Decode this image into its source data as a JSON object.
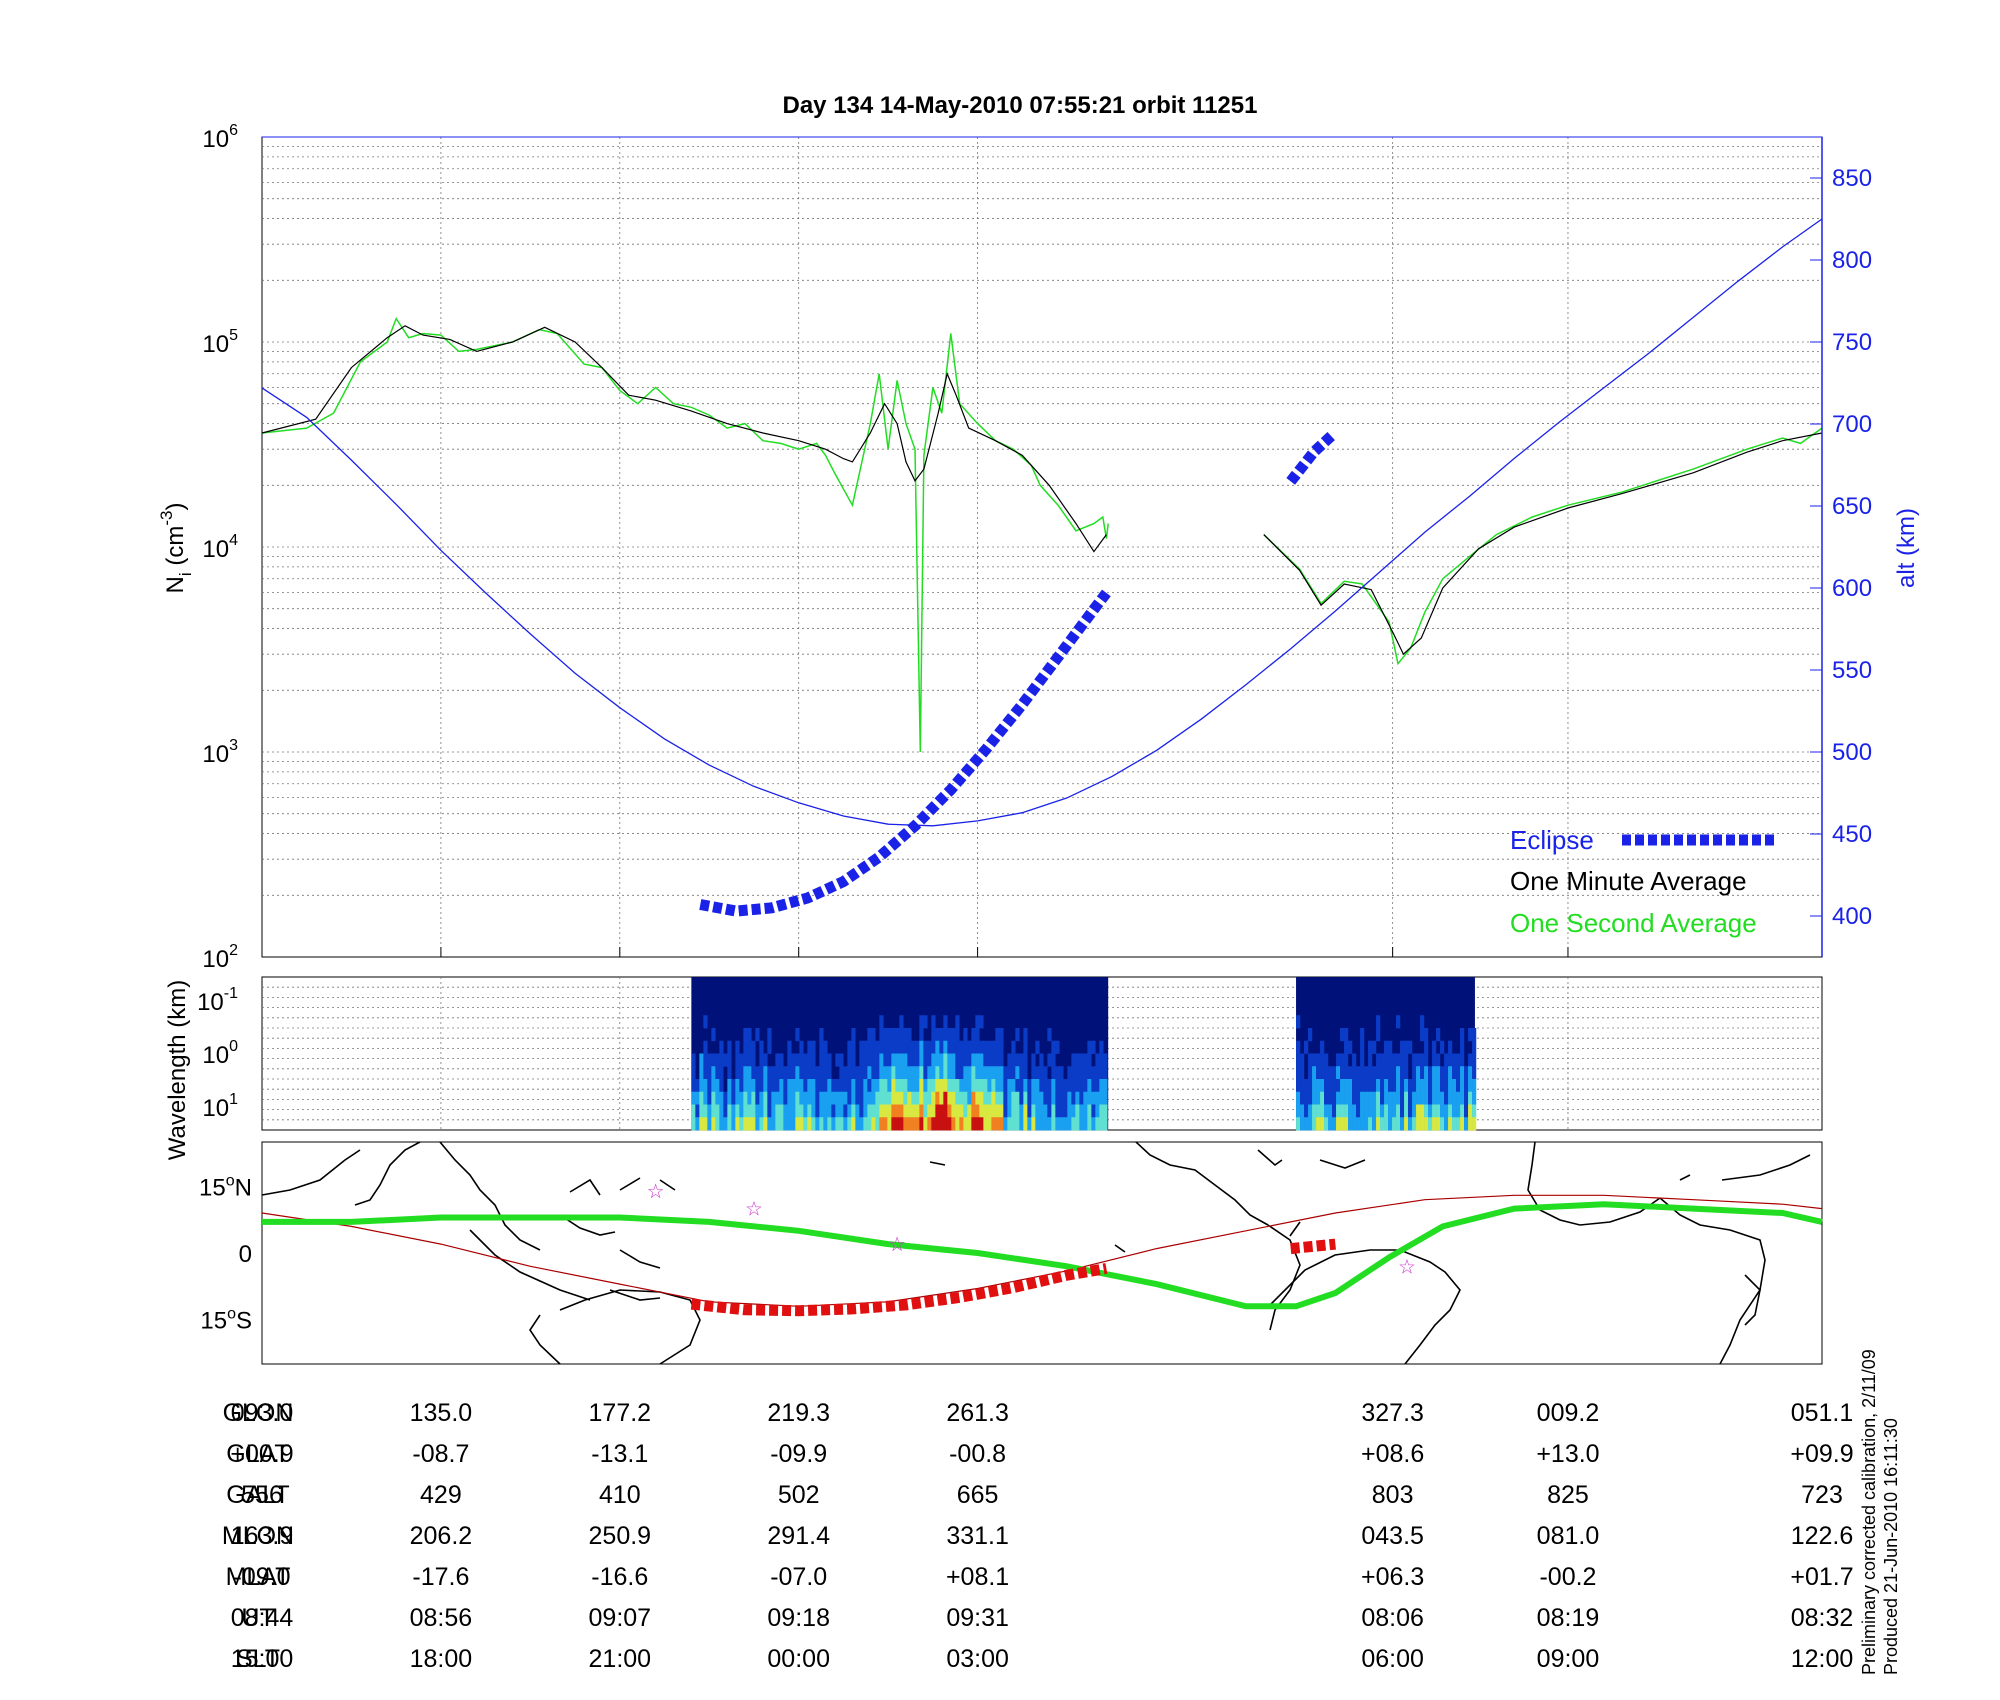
{
  "title": "Day 134  14-May-2010 07:55:21   orbit 11251",
  "chart_data": [
    {
      "type": "line",
      "panel": "ion density and altitude",
      "ylabel": "N_i (cm^-3)",
      "ylabel_parts": {
        "base": "N",
        "sub": "i",
        "unit": "(cm",
        "exp": "-3",
        "close": ")"
      },
      "yscale": "log",
      "ylim": [
        100,
        1000000
      ],
      "y_ticks": [
        {
          "base": "10",
          "exp": "2"
        },
        {
          "base": "10",
          "exp": "3"
        },
        {
          "base": "10",
          "exp": "4"
        },
        {
          "base": "10",
          "exp": "5"
        },
        {
          "base": "10",
          "exp": "6"
        }
      ],
      "y2label": "alt (km)",
      "y2lim": [
        375,
        875
      ],
      "y2_ticks": [
        "400",
        "450",
        "500",
        "550",
        "600",
        "650",
        "700",
        "750",
        "800",
        "850"
      ],
      "x_tick_columns": 9,
      "grid": true,
      "legend": {
        "placement": "lower-right",
        "items": [
          {
            "label": "Eclipse",
            "color": "#1a22e8"
          },
          {
            "label": "One Minute Average",
            "color": "#000000"
          },
          {
            "label": "One Second Average",
            "color": "#22dd22"
          }
        ]
      },
      "series": [
        {
          "name": "One Second Average",
          "color": "#22dd22",
          "segments": [
            [
              [
                0,
                36000
              ],
              [
                0.25,
                38000
              ],
              [
                0.4,
                45000
              ],
              [
                0.55,
                80000
              ],
              [
                0.7,
                100000
              ],
              [
                0.75,
                130000
              ],
              [
                0.82,
                105000
              ],
              [
                0.9,
                110000
              ],
              [
                1.0,
                108000
              ],
              [
                1.1,
                90000
              ],
              [
                1.2,
                92000
              ],
              [
                1.4,
                100000
              ],
              [
                1.55,
                115000
              ],
              [
                1.65,
                110000
              ],
              [
                1.8,
                78000
              ],
              [
                1.9,
                75000
              ],
              [
                2.0,
                58000
              ],
              [
                2.1,
                50000
              ],
              [
                2.2,
                60000
              ],
              [
                2.3,
                50000
              ],
              [
                2.4,
                48000
              ],
              [
                2.5,
                44000
              ],
              [
                2.6,
                38000
              ],
              [
                2.7,
                40000
              ],
              [
                2.8,
                33000
              ],
              [
                2.9,
                32000
              ],
              [
                3.0,
                30000
              ],
              [
                3.1,
                32000
              ],
              [
                3.15,
                28000
              ],
              [
                3.2,
                23000
              ],
              [
                3.3,
                16000
              ],
              [
                3.4,
                40000
              ],
              [
                3.45,
                70000
              ],
              [
                3.5,
                30000
              ],
              [
                3.55,
                65000
              ],
              [
                3.6,
                40000
              ],
              [
                3.65,
                30000
              ],
              [
                3.68,
                1000
              ],
              [
                3.7,
                28000
              ],
              [
                3.75,
                60000
              ],
              [
                3.8,
                45000
              ],
              [
                3.85,
                110000
              ],
              [
                3.9,
                50000
              ],
              [
                4.0,
                40000
              ],
              [
                4.1,
                33000
              ],
              [
                4.2,
                30000
              ],
              [
                4.3,
                25000
              ],
              [
                4.35,
                20000
              ],
              [
                4.45,
                16000
              ],
              [
                4.55,
                12000
              ],
              [
                4.65,
                13000
              ],
              [
                4.7,
                14000
              ],
              [
                4.72,
                11000
              ],
              [
                4.73,
                13000
              ]
            ],
            [
              [
                5.6,
                11500
              ],
              [
                5.8,
                7800
              ],
              [
                5.92,
                5300
              ],
              [
                6.05,
                6800
              ],
              [
                6.15,
                6600
              ],
              [
                6.3,
                4300
              ],
              [
                6.35,
                2700
              ],
              [
                6.42,
                3200
              ],
              [
                6.5,
                4800
              ],
              [
                6.6,
                7000
              ],
              [
                6.75,
                9000
              ],
              [
                6.9,
                11500
              ],
              [
                7.1,
                14000
              ],
              [
                7.3,
                16000
              ],
              [
                7.6,
                18500
              ],
              [
                8.0,
                24000
              ],
              [
                8.3,
                30000
              ],
              [
                8.5,
                34000
              ],
              [
                8.6,
                32000
              ],
              [
                8.72,
                38000
              ]
            ]
          ]
        },
        {
          "name": "One Minute Average",
          "color": "#000000",
          "segments": [
            [
              [
                0,
                36000
              ],
              [
                0.3,
                42000
              ],
              [
                0.5,
                75000
              ],
              [
                0.7,
                105000
              ],
              [
                0.8,
                120000
              ],
              [
                0.9,
                108000
              ],
              [
                1.05,
                103000
              ],
              [
                1.2,
                90000
              ],
              [
                1.4,
                100000
              ],
              [
                1.58,
                118000
              ],
              [
                1.75,
                100000
              ],
              [
                1.9,
                75000
              ],
              [
                2.05,
                55000
              ],
              [
                2.2,
                52000
              ],
              [
                2.4,
                46000
              ],
              [
                2.6,
                40000
              ],
              [
                2.8,
                36000
              ],
              [
                3.0,
                33000
              ],
              [
                3.15,
                30000
              ],
              [
                3.25,
                27000
              ],
              [
                3.3,
                26000
              ],
              [
                3.4,
                36000
              ],
              [
                3.48,
                50000
              ],
              [
                3.55,
                40000
              ],
              [
                3.6,
                26000
              ],
              [
                3.65,
                21000
              ],
              [
                3.7,
                24000
              ],
              [
                3.78,
                45000
              ],
              [
                3.83,
                70000
              ],
              [
                3.88,
                55000
              ],
              [
                3.95,
                38000
              ],
              [
                4.1,
                33000
              ],
              [
                4.25,
                28000
              ],
              [
                4.4,
                20000
              ],
              [
                4.55,
                13000
              ],
              [
                4.65,
                9500
              ],
              [
                4.72,
                11500
              ]
            ],
            [
              [
                5.6,
                11500
              ],
              [
                5.8,
                7700
              ],
              [
                5.92,
                5200
              ],
              [
                6.05,
                6600
              ],
              [
                6.2,
                6200
              ],
              [
                6.33,
                3700
              ],
              [
                6.38,
                3000
              ],
              [
                6.48,
                3600
              ],
              [
                6.6,
                6300
              ],
              [
                6.8,
                9800
              ],
              [
                7.0,
                12500
              ],
              [
                7.3,
                15500
              ],
              [
                7.6,
                18200
              ],
              [
                8.0,
                23000
              ],
              [
                8.3,
                29000
              ],
              [
                8.5,
                33000
              ],
              [
                8.72,
                36000
              ]
            ]
          ]
        },
        {
          "name": "alt (km)",
          "axis": "right",
          "color": "#1a22e8",
          "x": [
            0,
            0.25,
            0.5,
            0.75,
            1.0,
            1.25,
            1.5,
            1.75,
            2.0,
            2.25,
            2.5,
            2.75,
            3.0,
            3.25,
            3.5,
            3.75,
            4.0,
            4.25,
            4.5,
            4.75,
            5.0,
            5.25,
            5.5,
            5.75,
            6.0,
            6.25,
            6.5,
            6.75,
            7.0,
            7.25,
            7.5,
            7.75,
            8.0,
            8.25,
            8.5,
            8.72
          ],
          "y": [
            722,
            704,
            678,
            651,
            623,
            597,
            572,
            548,
            527,
            508,
            492,
            479,
            469,
            461,
            456,
            455,
            458,
            463,
            472,
            485,
            501,
            520,
            541,
            563,
            586,
            610,
            634,
            656,
            679,
            701,
            722,
            743,
            765,
            787,
            808,
            825
          ]
        },
        {
          "name": "Eclipse",
          "axis": "right",
          "color": "#1a22e8",
          "x": [
            2.45,
            2.65,
            2.85,
            3.05,
            3.25,
            3.45,
            3.65,
            3.85,
            4.05,
            4.25,
            4.45,
            4.65,
            4.72,
            5.75,
            5.88,
            5.98
          ],
          "y": [
            407,
            403,
            405,
            411,
            421,
            436,
            455,
            477,
            502,
            529,
            558,
            587,
            597,
            665,
            683,
            693
          ]
        }
      ]
    },
    {
      "type": "heatmap",
      "panel": "spectrogram",
      "ylabel": "Wavelength (km)",
      "y_ticks": [
        {
          "base": "10",
          "exp": "-1"
        },
        {
          "base": "10",
          "exp": "0"
        },
        {
          "base": "10",
          "exp": "1"
        }
      ],
      "blocks": [
        {
          "x_start": 2.4,
          "x_end": 4.73
        },
        {
          "x_start": 5.78,
          "x_end": 6.78
        }
      ],
      "color_scale": [
        "#00127a",
        "#0a3cc8",
        "#1aa0f0",
        "#60e0d0",
        "#d8e840",
        "#f08020",
        "#c81010"
      ]
    },
    {
      "type": "map",
      "panel": "ground track",
      "y_ticks": [
        {
          "deg": "15",
          "dir": "N"
        },
        {
          "deg": "0",
          "dir": ""
        },
        {
          "deg": "15",
          "dir": "S"
        }
      ],
      "ylim": [
        -25,
        25
      ],
      "satellite_track": {
        "color": "#aa0000",
        "x": [
          0,
          0.5,
          1.0,
          1.5,
          2.0,
          2.5,
          3.0,
          3.5,
          4.0,
          4.5,
          5.0,
          5.5,
          6.0,
          6.5,
          7.0,
          7.5,
          8.0,
          8.5,
          8.72
        ],
        "y": [
          9,
          6,
          2,
          -3,
          -7,
          -11,
          -12,
          -11,
          -8,
          -4,
          1,
          5,
          9,
          12,
          13,
          13,
          12,
          11,
          10
        ]
      },
      "eclipse_track": {
        "color": "#e01010",
        "x": [
          2.4,
          2.7,
          3.0,
          3.3,
          3.6,
          3.9,
          4.2,
          4.5,
          4.72,
          5.75,
          6.0
        ],
        "y": [
          -11.5,
          -12.8,
          -13,
          -12.6,
          -11.7,
          -10,
          -7.8,
          -5,
          -3.5,
          1,
          2
        ]
      },
      "magnetic_equator": {
        "color": "#22dd22",
        "x": [
          0,
          0.5,
          1.0,
          1.5,
          2.0,
          2.5,
          3.0,
          3.5,
          4.0,
          4.5,
          5.0,
          5.5,
          5.78,
          6.0,
          6.3,
          6.6,
          7.0,
          7.5,
          8.0,
          8.5,
          8.72
        ],
        "y": [
          7,
          7,
          8,
          8,
          8,
          7,
          5,
          2,
          0,
          -3,
          -7,
          -12,
          -12,
          -9,
          -1,
          6,
          10,
          11,
          10,
          9,
          7
        ]
      },
      "stars": {
        "color": "#cc33cc",
        "x": [
          2.2,
          2.75,
          3.55,
          6.4
        ],
        "y": [
          14,
          10,
          2,
          -3
        ]
      }
    }
  ],
  "table": {
    "columns_x": [
      0,
      1,
      2,
      3,
      4,
      6.32,
      7.3,
      8.72
    ],
    "rows": [
      {
        "label": "GLON",
        "values": [
          "093.0",
          "135.0",
          "177.2",
          "219.3",
          "261.3",
          "327.3",
          "009.2",
          "051.1"
        ]
      },
      {
        "label": "GLAT",
        "values": [
          "+00.9",
          "-08.7",
          "-13.1",
          "-09.9",
          "-00.8",
          "+08.6",
          "+13.0",
          "+09.9"
        ]
      },
      {
        "label": "GALT",
        "values": [
          "556",
          "429",
          "410",
          "502",
          "665",
          "803",
          "825",
          "723"
        ]
      },
      {
        "label": "MLON",
        "values": [
          "163.9",
          "206.2",
          "250.9",
          "291.4",
          "331.1",
          "043.5",
          "081.0",
          "122.6"
        ]
      },
      {
        "label": "MLAT",
        "values": [
          "-09.0",
          "-17.6",
          "-16.6",
          "-07.0",
          "+08.1",
          "+06.3",
          "-00.2",
          "+01.7"
        ]
      },
      {
        "label": "UT",
        "values": [
          "08:44",
          "08:56",
          "09:07",
          "09:18",
          "09:31",
          "08:06",
          "08:19",
          "08:32"
        ]
      },
      {
        "label": "SLT",
        "values": [
          "15:00",
          "18:00",
          "21:00",
          "00:00",
          "03:00",
          "06:00",
          "09:00",
          "12:00"
        ]
      }
    ]
  },
  "footnote": {
    "line1": "Preliminary corrected calibration, 2/11/09",
    "line2": "Produced 21-Jun-2010 16:11:30"
  }
}
